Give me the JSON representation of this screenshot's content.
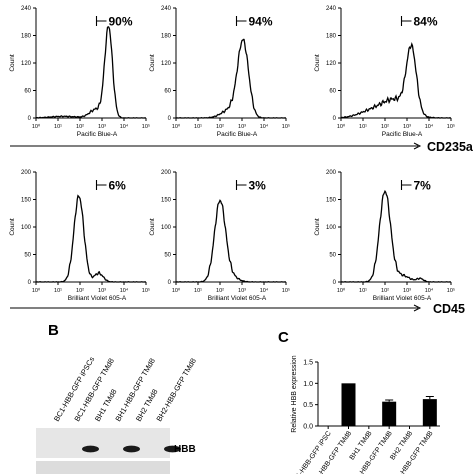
{
  "flow": {
    "count_label": "Count",
    "x_ticks": [
      "10⁰",
      "10¹",
      "10²",
      "10³",
      "10⁴",
      "10⁵"
    ],
    "rows": [
      {
        "marker": "CD235a",
        "channel": "Pacific Blue-A",
        "ymax": 240,
        "y_ticks": [
          "0",
          "60",
          "120",
          "180",
          "240"
        ],
        "panels": [
          {
            "percent": "90%",
            "shape": "pos_sharp"
          },
          {
            "percent": "94%",
            "shape": "pos_broad"
          },
          {
            "percent": "84%",
            "shape": "pos_tail"
          }
        ]
      },
      {
        "marker": "CD45",
        "channel": "Brilliant Violet 605-A",
        "ymax": 200,
        "y_ticks": [
          "0",
          "50",
          "100",
          "150",
          "200"
        ],
        "panels": [
          {
            "percent": "6%",
            "shape": "neg_bump"
          },
          {
            "percent": "3%",
            "shape": "neg"
          },
          {
            "percent": "7%",
            "shape": "neg_tail"
          }
        ]
      }
    ]
  },
  "panel_b": {
    "label": "B",
    "lanes": [
      "BC1-HBB-GFP iPSCs",
      "BC1-HBB-GFP TMd8",
      "BH1 TMd8",
      "BH1-HBB-GFP TMd8",
      "BH2 TMd8",
      "BH2-HBB-GFP TMd8"
    ],
    "band_label": "HBB",
    "band_present": [
      false,
      true,
      false,
      true,
      false,
      true
    ]
  },
  "panel_c": {
    "label": "C",
    "chart_data": {
      "type": "bar",
      "categories": [
        "BC1-HBB-GFP iPSC",
        "BC1-HBB-GFP TMd8",
        "BH1 TMd8",
        "BH1-HBB-GFP TMd8",
        "BH2 TMd8",
        "BH2-HBB-GFP TMd8"
      ],
      "values": [
        0,
        1.0,
        0,
        0.57,
        0,
        0.63
      ],
      "errors": [
        0,
        0,
        0,
        0.04,
        0,
        0.06
      ],
      "ylabel": "Relative HBB expression",
      "ylim": [
        0,
        1.5
      ],
      "y_ticks": [
        "0.0",
        "0.5",
        "1.0",
        "1.5"
      ]
    }
  }
}
